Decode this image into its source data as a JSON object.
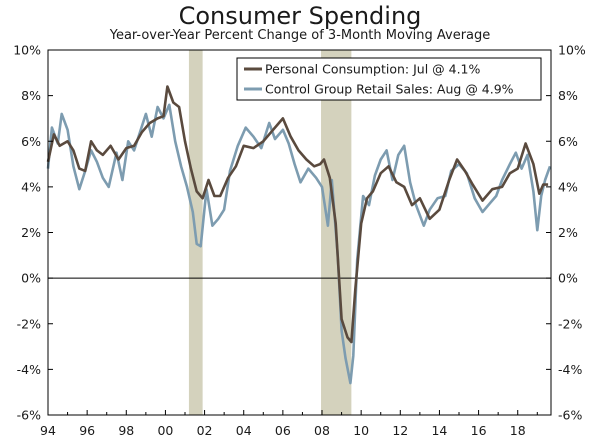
{
  "chart_data": {
    "type": "line",
    "title": "Consumer Spending",
    "subtitle": "Year-over-Year Percent Change of 3-Month Moving Average",
    "xlabel": "",
    "ylabel": "",
    "xlim": [
      1994,
      2019.7
    ],
    "ylim": [
      -6,
      10
    ],
    "x_ticks": [
      1994,
      1996,
      1998,
      2000,
      2002,
      2004,
      2006,
      2008,
      2010,
      2012,
      2014,
      2016,
      2018
    ],
    "x_tick_labels": [
      "94",
      "96",
      "98",
      "00",
      "02",
      "04",
      "06",
      "08",
      "10",
      "12",
      "14",
      "16",
      "18"
    ],
    "y_ticks": [
      -6,
      -4,
      -2,
      0,
      2,
      4,
      6,
      8,
      10
    ],
    "y_tick_labels": [
      "-6%",
      "-4%",
      "-2%",
      "0%",
      "2%",
      "4%",
      "6%",
      "8%",
      "10%"
    ],
    "legend_position": "top-right",
    "recessions": [
      {
        "start": 2001.2,
        "end": 2001.9
      },
      {
        "start": 2007.95,
        "end": 2009.5
      }
    ],
    "series": [
      {
        "name": "Personal Consumption: Jul @ 4.1%",
        "color": "#5a4a3e",
        "points": [
          [
            1994.0,
            5.1
          ],
          [
            1994.3,
            6.3
          ],
          [
            1994.6,
            5.8
          ],
          [
            1995.0,
            6.0
          ],
          [
            1995.3,
            5.6
          ],
          [
            1995.6,
            4.8
          ],
          [
            1995.9,
            4.7
          ],
          [
            1996.2,
            6.0
          ],
          [
            1996.5,
            5.6
          ],
          [
            1996.8,
            5.4
          ],
          [
            1997.2,
            5.8
          ],
          [
            1997.6,
            5.2
          ],
          [
            1998.0,
            5.7
          ],
          [
            1998.4,
            5.8
          ],
          [
            1998.8,
            6.4
          ],
          [
            1999.2,
            6.8
          ],
          [
            1999.6,
            7.0
          ],
          [
            1999.9,
            7.1
          ],
          [
            2000.1,
            8.4
          ],
          [
            2000.4,
            7.7
          ],
          [
            2000.7,
            7.5
          ],
          [
            2001.0,
            6.0
          ],
          [
            2001.3,
            4.8
          ],
          [
            2001.6,
            3.8
          ],
          [
            2001.9,
            3.5
          ],
          [
            2002.2,
            4.3
          ],
          [
            2002.5,
            3.6
          ],
          [
            2002.8,
            3.6
          ],
          [
            2003.2,
            4.4
          ],
          [
            2003.6,
            4.9
          ],
          [
            2004.0,
            5.8
          ],
          [
            2004.5,
            5.7
          ],
          [
            2005.0,
            6.0
          ],
          [
            2005.5,
            6.5
          ],
          [
            2006.0,
            7.0
          ],
          [
            2006.4,
            6.2
          ],
          [
            2006.8,
            5.6
          ],
          [
            2007.2,
            5.2
          ],
          [
            2007.6,
            4.9
          ],
          [
            2007.9,
            5.0
          ],
          [
            2008.1,
            5.2
          ],
          [
            2008.4,
            4.4
          ],
          [
            2008.7,
            2.4
          ],
          [
            2009.0,
            -1.8
          ],
          [
            2009.3,
            -2.6
          ],
          [
            2009.5,
            -2.8
          ],
          [
            2009.7,
            -0.5
          ],
          [
            2010.0,
            2.4
          ],
          [
            2010.3,
            3.5
          ],
          [
            2010.6,
            3.8
          ],
          [
            2011.0,
            4.6
          ],
          [
            2011.4,
            4.9
          ],
          [
            2011.8,
            4.2
          ],
          [
            2012.2,
            4.0
          ],
          [
            2012.6,
            3.2
          ],
          [
            2013.0,
            3.5
          ],
          [
            2013.5,
            2.6
          ],
          [
            2014.0,
            3.0
          ],
          [
            2014.5,
            4.3
          ],
          [
            2014.9,
            5.2
          ],
          [
            2015.3,
            4.7
          ],
          [
            2015.7,
            4.1
          ],
          [
            2016.2,
            3.4
          ],
          [
            2016.7,
            3.9
          ],
          [
            2017.2,
            4.0
          ],
          [
            2017.6,
            4.6
          ],
          [
            2018.0,
            4.8
          ],
          [
            2018.4,
            5.9
          ],
          [
            2018.8,
            5.0
          ],
          [
            2019.1,
            3.7
          ],
          [
            2019.3,
            4.1
          ],
          [
            2019.55,
            4.1
          ]
        ]
      },
      {
        "name": "Control Group Retail Sales: Aug @ 4.9%",
        "color": "#7d9cb0",
        "points": [
          [
            1994.0,
            4.8
          ],
          [
            1994.2,
            6.6
          ],
          [
            1994.5,
            5.9
          ],
          [
            1994.7,
            7.2
          ],
          [
            1995.0,
            6.5
          ],
          [
            1995.3,
            4.9
          ],
          [
            1995.6,
            3.9
          ],
          [
            1995.9,
            4.7
          ],
          [
            1996.2,
            5.6
          ],
          [
            1996.5,
            5.1
          ],
          [
            1996.8,
            4.4
          ],
          [
            1997.1,
            4.0
          ],
          [
            1997.5,
            5.5
          ],
          [
            1997.8,
            4.3
          ],
          [
            1998.1,
            6.0
          ],
          [
            1998.4,
            5.6
          ],
          [
            1998.7,
            6.4
          ],
          [
            1999.0,
            7.2
          ],
          [
            1999.3,
            6.2
          ],
          [
            1999.6,
            7.5
          ],
          [
            1999.9,
            7.0
          ],
          [
            2000.2,
            7.6
          ],
          [
            2000.5,
            6.0
          ],
          [
            2000.8,
            4.9
          ],
          [
            2001.1,
            4.0
          ],
          [
            2001.4,
            2.9
          ],
          [
            2001.6,
            1.5
          ],
          [
            2001.8,
            1.4
          ],
          [
            2002.1,
            3.9
          ],
          [
            2002.4,
            2.3
          ],
          [
            2002.7,
            2.6
          ],
          [
            2003.0,
            3.0
          ],
          [
            2003.3,
            4.7
          ],
          [
            2003.7,
            5.8
          ],
          [
            2004.1,
            6.6
          ],
          [
            2004.5,
            6.2
          ],
          [
            2004.9,
            5.7
          ],
          [
            2005.3,
            6.8
          ],
          [
            2005.6,
            6.1
          ],
          [
            2006.0,
            6.5
          ],
          [
            2006.3,
            5.9
          ],
          [
            2006.6,
            5.0
          ],
          [
            2006.9,
            4.2
          ],
          [
            2007.3,
            4.8
          ],
          [
            2007.7,
            4.4
          ],
          [
            2008.0,
            4.0
          ],
          [
            2008.3,
            2.3
          ],
          [
            2008.5,
            4.3
          ],
          [
            2008.8,
            1.0
          ],
          [
            2009.0,
            -2.3
          ],
          [
            2009.2,
            -3.5
          ],
          [
            2009.45,
            -4.6
          ],
          [
            2009.6,
            -3.4
          ],
          [
            2009.8,
            0.8
          ],
          [
            2010.1,
            3.6
          ],
          [
            2010.4,
            3.2
          ],
          [
            2010.7,
            4.5
          ],
          [
            2011.0,
            5.2
          ],
          [
            2011.3,
            5.6
          ],
          [
            2011.6,
            4.3
          ],
          [
            2011.9,
            5.4
          ],
          [
            2012.2,
            5.8
          ],
          [
            2012.5,
            4.2
          ],
          [
            2012.8,
            3.2
          ],
          [
            2013.2,
            2.3
          ],
          [
            2013.5,
            3.0
          ],
          [
            2013.9,
            3.5
          ],
          [
            2014.3,
            3.6
          ],
          [
            2014.6,
            4.7
          ],
          [
            2015.0,
            5.0
          ],
          [
            2015.4,
            4.6
          ],
          [
            2015.8,
            3.5
          ],
          [
            2016.2,
            2.9
          ],
          [
            2016.6,
            3.3
          ],
          [
            2016.9,
            3.6
          ],
          [
            2017.2,
            4.3
          ],
          [
            2017.6,
            5.0
          ],
          [
            2017.9,
            5.5
          ],
          [
            2018.2,
            4.8
          ],
          [
            2018.5,
            5.4
          ],
          [
            2018.8,
            3.8
          ],
          [
            2019.0,
            2.1
          ],
          [
            2019.2,
            3.6
          ],
          [
            2019.4,
            4.3
          ],
          [
            2019.65,
            4.9
          ]
        ]
      }
    ]
  }
}
